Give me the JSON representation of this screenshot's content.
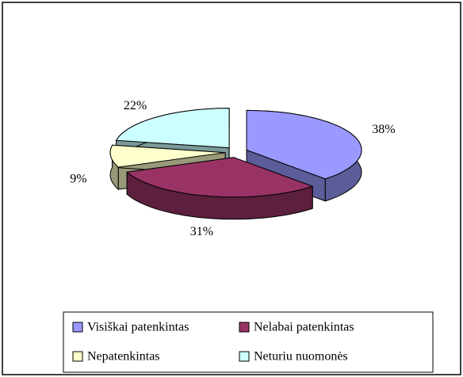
{
  "chart_data": {
    "type": "pie3d",
    "categories": [
      "Visiškai patenkintas",
      "Nelabai patenkintas",
      "Nepatenkintas",
      "Neturiu nuomonės"
    ],
    "values": [
      38,
      31,
      9,
      22
    ],
    "value_labels": [
      "38%",
      "31%",
      "9%",
      "22%"
    ],
    "colors": [
      "#9999ff",
      "#993366",
      "#ffffcc",
      "#ccffff"
    ],
    "legend": "bottom"
  }
}
